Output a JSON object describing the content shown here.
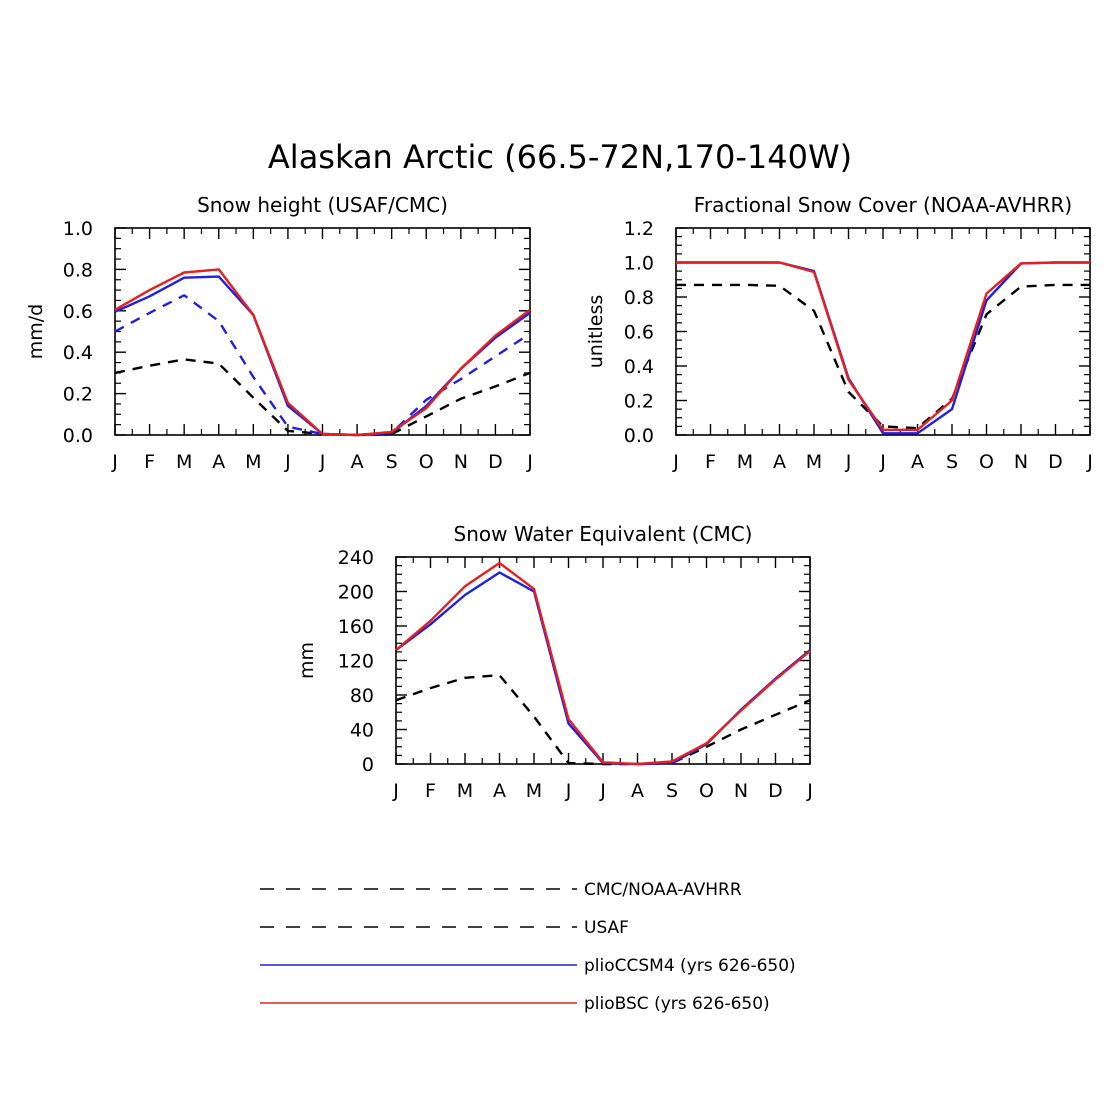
{
  "title": "Alaskan Arctic (66.5-72N,170-140W)",
  "colors": {
    "obs": "#000000",
    "usaf": "#1f1fe6",
    "ccsm4": "#1f1fe6",
    "bsc": "#e61f1f"
  },
  "legend": [
    {
      "label": "CMC/NOAA-AVHRR",
      "color": "#000000",
      "dash": true
    },
    {
      "label": "USAF",
      "color": "#1f1fe6",
      "dash": true
    },
    {
      "label": "plioCCSM4 (yrs 626-650)",
      "color": "#1f1fe6",
      "dash": false
    },
    {
      "label": "plioBSC (yrs 626-650)",
      "color": "#e61f1f",
      "dash": false
    }
  ],
  "chart_data": [
    {
      "type": "line",
      "title": "Snow height (USAF/CMC)",
      "xlabel": "",
      "ylabel": "mm/d",
      "categories": [
        "J",
        "F",
        "M",
        "A",
        "M",
        "J",
        "J",
        "A",
        "S",
        "O",
        "N",
        "D",
        "J"
      ],
      "ylim": [
        0,
        1.0
      ],
      "yticks": [
        "0.0",
        "0.2",
        "0.4",
        "0.6",
        "0.8",
        "1.0"
      ],
      "series": [
        {
          "name": "CMC/NOAA-AVHRR",
          "style": "dash",
          "color": "#000000",
          "values": [
            0.3,
            0.335,
            0.365,
            0.345,
            0.18,
            0.02,
            0.005,
            0.0,
            0.005,
            0.09,
            0.175,
            0.235,
            0.3
          ]
        },
        {
          "name": "USAF",
          "style": "dash",
          "color": "#1f1fe6",
          "values": [
            0.5,
            0.59,
            0.675,
            0.55,
            0.28,
            0.04,
            0.005,
            0.0,
            0.01,
            0.17,
            0.27,
            0.38,
            0.49
          ]
        },
        {
          "name": "plioCCSM4 (yrs 626-650)",
          "style": "solid",
          "color": "#1f1fe6",
          "values": [
            0.595,
            0.67,
            0.76,
            0.765,
            0.58,
            0.14,
            0.005,
            0.0,
            0.01,
            0.14,
            0.32,
            0.47,
            0.59
          ]
        },
        {
          "name": "plioBSC (yrs 626-650)",
          "style": "solid",
          "color": "#e61f1f",
          "values": [
            0.605,
            0.7,
            0.785,
            0.8,
            0.58,
            0.155,
            0.005,
            0.0,
            0.015,
            0.13,
            0.32,
            0.48,
            0.605
          ]
        }
      ]
    },
    {
      "type": "line",
      "title": "Fractional Snow Cover (NOAA-AVHRR)",
      "xlabel": "",
      "ylabel": "unitless",
      "categories": [
        "J",
        "F",
        "M",
        "A",
        "M",
        "J",
        "J",
        "A",
        "S",
        "O",
        "N",
        "D",
        "J"
      ],
      "ylim": [
        0,
        1.2
      ],
      "yticks": [
        "0.0",
        "0.2",
        "0.4",
        "0.6",
        "0.8",
        "1.0",
        "1.2"
      ],
      "series": [
        {
          "name": "CMC/NOAA-AVHRR",
          "style": "dash",
          "color": "#000000",
          "values": [
            0.87,
            0.87,
            0.87,
            0.865,
            0.72,
            0.25,
            0.05,
            0.04,
            0.21,
            0.7,
            0.86,
            0.87,
            0.87
          ]
        },
        {
          "name": "plioCCSM4 (yrs 626-650)",
          "style": "solid",
          "color": "#1f1fe6",
          "values": [
            1.0,
            1.0,
            1.0,
            1.0,
            0.95,
            0.33,
            0.01,
            0.01,
            0.15,
            0.78,
            0.995,
            1.0,
            1.0
          ]
        },
        {
          "name": "plioBSC (yrs 626-650)",
          "style": "solid",
          "color": "#e61f1f",
          "values": [
            1.0,
            1.0,
            1.0,
            1.0,
            0.945,
            0.32,
            0.03,
            0.03,
            0.2,
            0.82,
            0.995,
            1.0,
            1.0
          ]
        }
      ]
    },
    {
      "type": "line",
      "title": "Snow Water Equivalent (CMC)",
      "xlabel": "",
      "ylabel": "mm",
      "categories": [
        "J",
        "F",
        "M",
        "A",
        "M",
        "J",
        "J",
        "A",
        "S",
        "O",
        "N",
        "D",
        "J"
      ],
      "ylim": [
        0,
        240
      ],
      "yticks": [
        "0",
        "40",
        "80",
        "120",
        "160",
        "200",
        "240"
      ],
      "series": [
        {
          "name": "CMC/NOAA-AVHRR",
          "style": "dash",
          "color": "#000000",
          "values": [
            74,
            88,
            100,
            103,
            55,
            1,
            0,
            0,
            1,
            20,
            40,
            57,
            74
          ]
        },
        {
          "name": "plioCCSM4 (yrs 626-650)",
          "style": "solid",
          "color": "#1f1fe6",
          "values": [
            132,
            162,
            196,
            222,
            200,
            47,
            1,
            0,
            1,
            23,
            63,
            99,
            132
          ]
        },
        {
          "name": "plioBSC (yrs 626-650)",
          "style": "solid",
          "color": "#e61f1f",
          "values": [
            132,
            166,
            206,
            233,
            203,
            52,
            2,
            0,
            3,
            24,
            62,
            98,
            131
          ]
        }
      ]
    }
  ]
}
